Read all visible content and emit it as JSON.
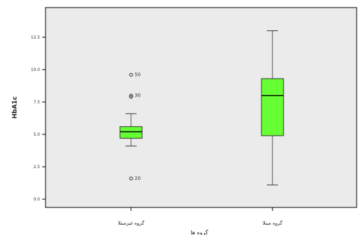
{
  "chart_data": {
    "type": "boxplot",
    "ylabel": "HbA1c",
    "xlabel": "گروه ها",
    "yticks": [
      0.0,
      2.5,
      5.0,
      7.5,
      10.0,
      12.5
    ],
    "ytick_labels": [
      "0.0",
      "2.5",
      "5.0",
      "7.5",
      "10.0",
      "12.5"
    ],
    "ylim": [
      -0.5,
      13.3
    ],
    "grid": false,
    "colors": {
      "box": "#66ff33",
      "plot_bg": "#ebebeb",
      "median": "#000000"
    },
    "boxes": [
      {
        "category": "گروه غيرمبتلا",
        "min": 4.1,
        "q1": 4.7,
        "median": 5.2,
        "q3": 5.6,
        "max": 6.6,
        "outliers": [
          {
            "value": 9.6,
            "label": "50"
          },
          {
            "value": 8.0,
            "label": "30"
          },
          {
            "value": 7.9,
            "label": ""
          },
          {
            "value": 1.6,
            "label": "20"
          }
        ]
      },
      {
        "category": "گروه مبتلا",
        "min": 1.1,
        "q1": 4.9,
        "median": 8.0,
        "q3": 9.3,
        "max": 13.0,
        "outliers": []
      }
    ]
  }
}
